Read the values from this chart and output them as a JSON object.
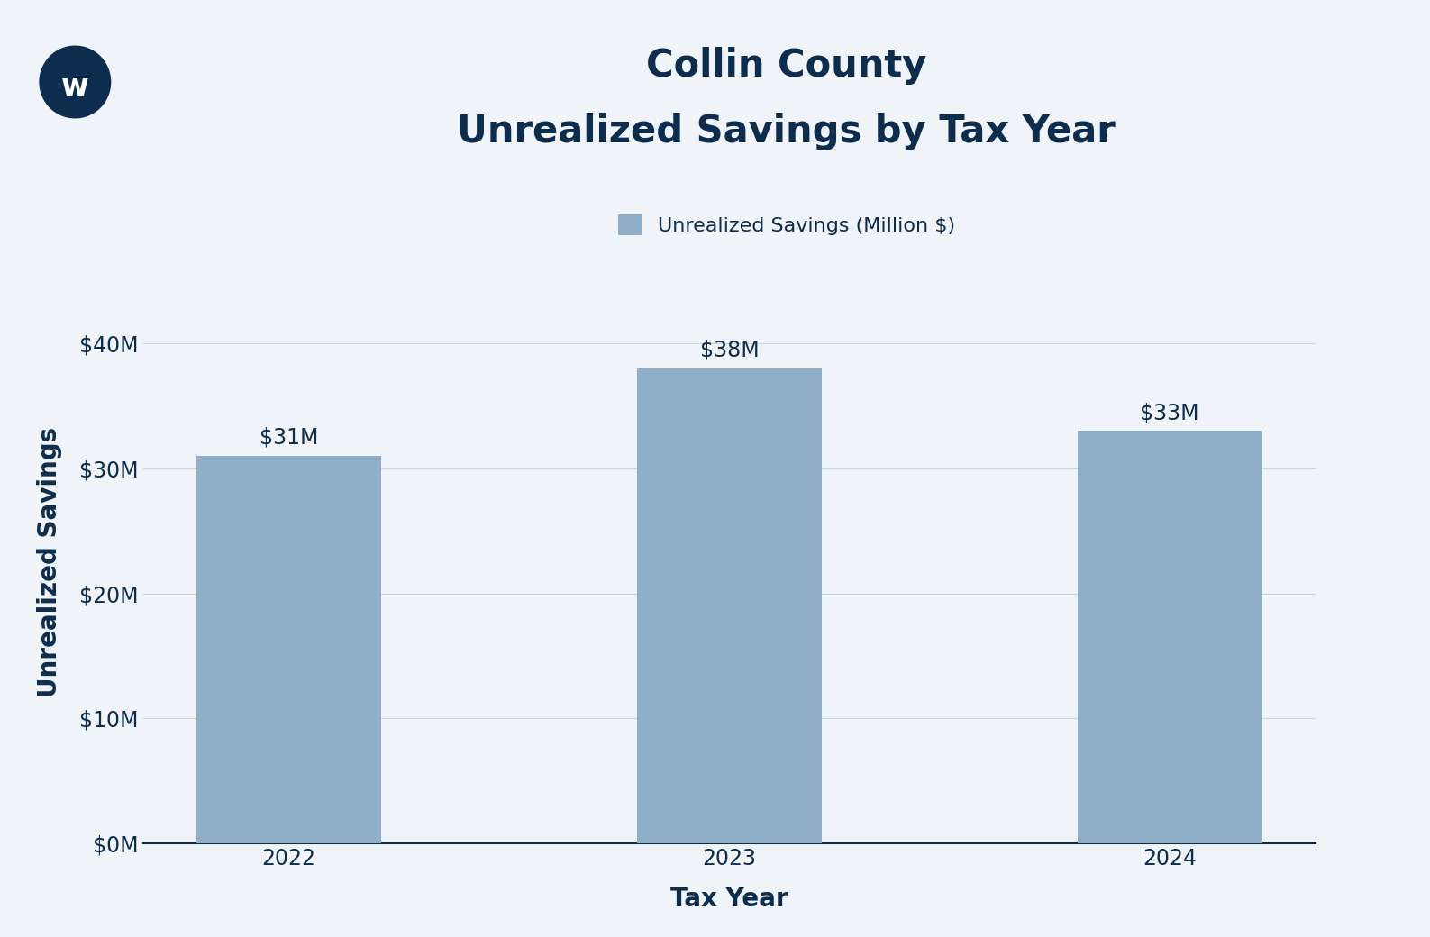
{
  "title_line1": "Collin County",
  "title_line2": "Unrealized Savings by Tax Year",
  "xlabel": "Tax Year",
  "ylabel": "Unrealized Savings",
  "legend_label": "Unrealized Savings (Million $)",
  "categories": [
    "2022",
    "2023",
    "2024"
  ],
  "values": [
    31,
    38,
    33
  ],
  "bar_color": "#8faec8",
  "bar_labels": [
    "$31M",
    "$38M",
    "$33M"
  ],
  "yticks": [
    0,
    10,
    20,
    30,
    40
  ],
  "ytick_labels": [
    "$0M",
    "$10M",
    "$20M",
    "$30M",
    "$40M"
  ],
  "ylim": [
    0,
    45
  ],
  "background_color": "#f0f4f8",
  "text_color": "#0d2d4e",
  "grid_color": "#c5d8e8",
  "title_fontsize": 30,
  "axis_label_fontsize": 20,
  "tick_fontsize": 17,
  "bar_label_fontsize": 17,
  "legend_fontsize": 16,
  "bar_width": 0.42,
  "logo_color": "#0d2d4e"
}
